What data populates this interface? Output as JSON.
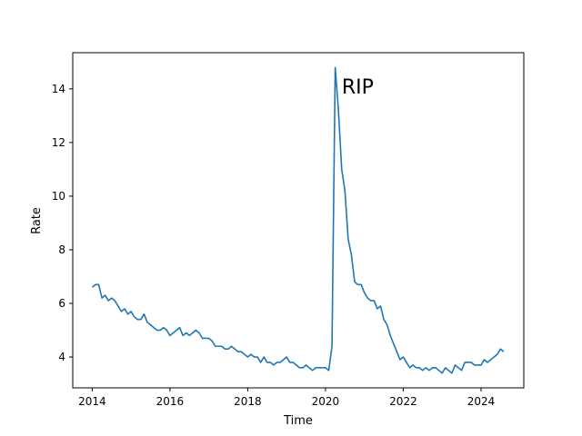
{
  "chart_data": {
    "type": "line",
    "xlabel": "Time",
    "ylabel": "Rate",
    "xlim": [
      2013.5,
      2025.1
    ],
    "ylim": [
      2.85,
      15.35
    ],
    "x_ticks": [
      2014,
      2016,
      2018,
      2020,
      2022,
      2024
    ],
    "x_tick_labels": [
      "2014",
      "2016",
      "2018",
      "2020",
      "2022",
      "2024"
    ],
    "y_ticks": [
      4,
      6,
      8,
      10,
      12,
      14
    ],
    "y_tick_labels": [
      "4",
      "6",
      "8",
      "10",
      "12",
      "14"
    ],
    "grid": false,
    "line_color": "#1f77b4",
    "annotation": {
      "text": "RIP",
      "x": 2020.42,
      "y": 14.1
    },
    "series": [
      {
        "x": [
          2014.0,
          2014.083,
          2014.167,
          2014.25,
          2014.333,
          2014.417,
          2014.5,
          2014.583,
          2014.667,
          2014.75,
          2014.833,
          2014.917,
          2015.0,
          2015.083,
          2015.167,
          2015.25,
          2015.333,
          2015.417,
          2015.5,
          2015.583,
          2015.667,
          2015.75,
          2015.833,
          2015.917,
          2016.0,
          2016.083,
          2016.167,
          2016.25,
          2016.333,
          2016.417,
          2016.5,
          2016.583,
          2016.667,
          2016.75,
          2016.833,
          2016.917,
          2017.0,
          2017.083,
          2017.167,
          2017.25,
          2017.333,
          2017.417,
          2017.5,
          2017.583,
          2017.667,
          2017.75,
          2017.833,
          2017.917,
          2018.0,
          2018.083,
          2018.167,
          2018.25,
          2018.333,
          2018.417,
          2018.5,
          2018.583,
          2018.667,
          2018.75,
          2018.833,
          2018.917,
          2019.0,
          2019.083,
          2019.167,
          2019.25,
          2019.333,
          2019.417,
          2019.5,
          2019.583,
          2019.667,
          2019.75,
          2019.833,
          2019.917,
          2020.0,
          2020.083,
          2020.167,
          2020.25,
          2020.333,
          2020.417,
          2020.5,
          2020.583,
          2020.667,
          2020.75,
          2020.833,
          2020.917,
          2021.0,
          2021.083,
          2021.167,
          2021.25,
          2021.333,
          2021.417,
          2021.5,
          2021.583,
          2021.667,
          2021.75,
          2021.833,
          2021.917,
          2022.0,
          2022.083,
          2022.167,
          2022.25,
          2022.333,
          2022.417,
          2022.5,
          2022.583,
          2022.667,
          2022.75,
          2022.833,
          2022.917,
          2023.0,
          2023.083,
          2023.167,
          2023.25,
          2023.333,
          2023.417,
          2023.5,
          2023.583,
          2023.667,
          2023.75,
          2023.833,
          2023.917,
          2024.0,
          2024.083,
          2024.167,
          2024.25,
          2024.333,
          2024.417,
          2024.5,
          2024.583
        ],
        "values": [
          6.6,
          6.7,
          6.7,
          6.2,
          6.3,
          6.1,
          6.2,
          6.1,
          5.9,
          5.7,
          5.8,
          5.6,
          5.7,
          5.5,
          5.4,
          5.4,
          5.6,
          5.3,
          5.2,
          5.1,
          5.0,
          5.0,
          5.1,
          5.0,
          4.8,
          4.9,
          5.0,
          5.1,
          4.8,
          4.9,
          4.8,
          4.9,
          5.0,
          4.9,
          4.7,
          4.7,
          4.7,
          4.6,
          4.4,
          4.4,
          4.4,
          4.3,
          4.3,
          4.4,
          4.3,
          4.2,
          4.2,
          4.1,
          4.0,
          4.1,
          4.0,
          4.0,
          3.8,
          4.0,
          3.8,
          3.8,
          3.7,
          3.8,
          3.8,
          3.9,
          4.0,
          3.8,
          3.8,
          3.7,
          3.6,
          3.6,
          3.7,
          3.6,
          3.5,
          3.6,
          3.6,
          3.6,
          3.6,
          3.5,
          4.4,
          14.8,
          13.2,
          11.0,
          10.2,
          8.4,
          7.8,
          6.8,
          6.7,
          6.7,
          6.4,
          6.2,
          6.1,
          6.1,
          5.8,
          5.9,
          5.4,
          5.2,
          4.8,
          4.5,
          4.2,
          3.9,
          4.0,
          3.8,
          3.6,
          3.7,
          3.6,
          3.6,
          3.5,
          3.6,
          3.5,
          3.6,
          3.6,
          3.5,
          3.4,
          3.6,
          3.5,
          3.4,
          3.7,
          3.6,
          3.5,
          3.8,
          3.8,
          3.8,
          3.7,
          3.7,
          3.7,
          3.9,
          3.8,
          3.9,
          4.0,
          4.1,
          4.3,
          4.2
        ]
      }
    ]
  }
}
